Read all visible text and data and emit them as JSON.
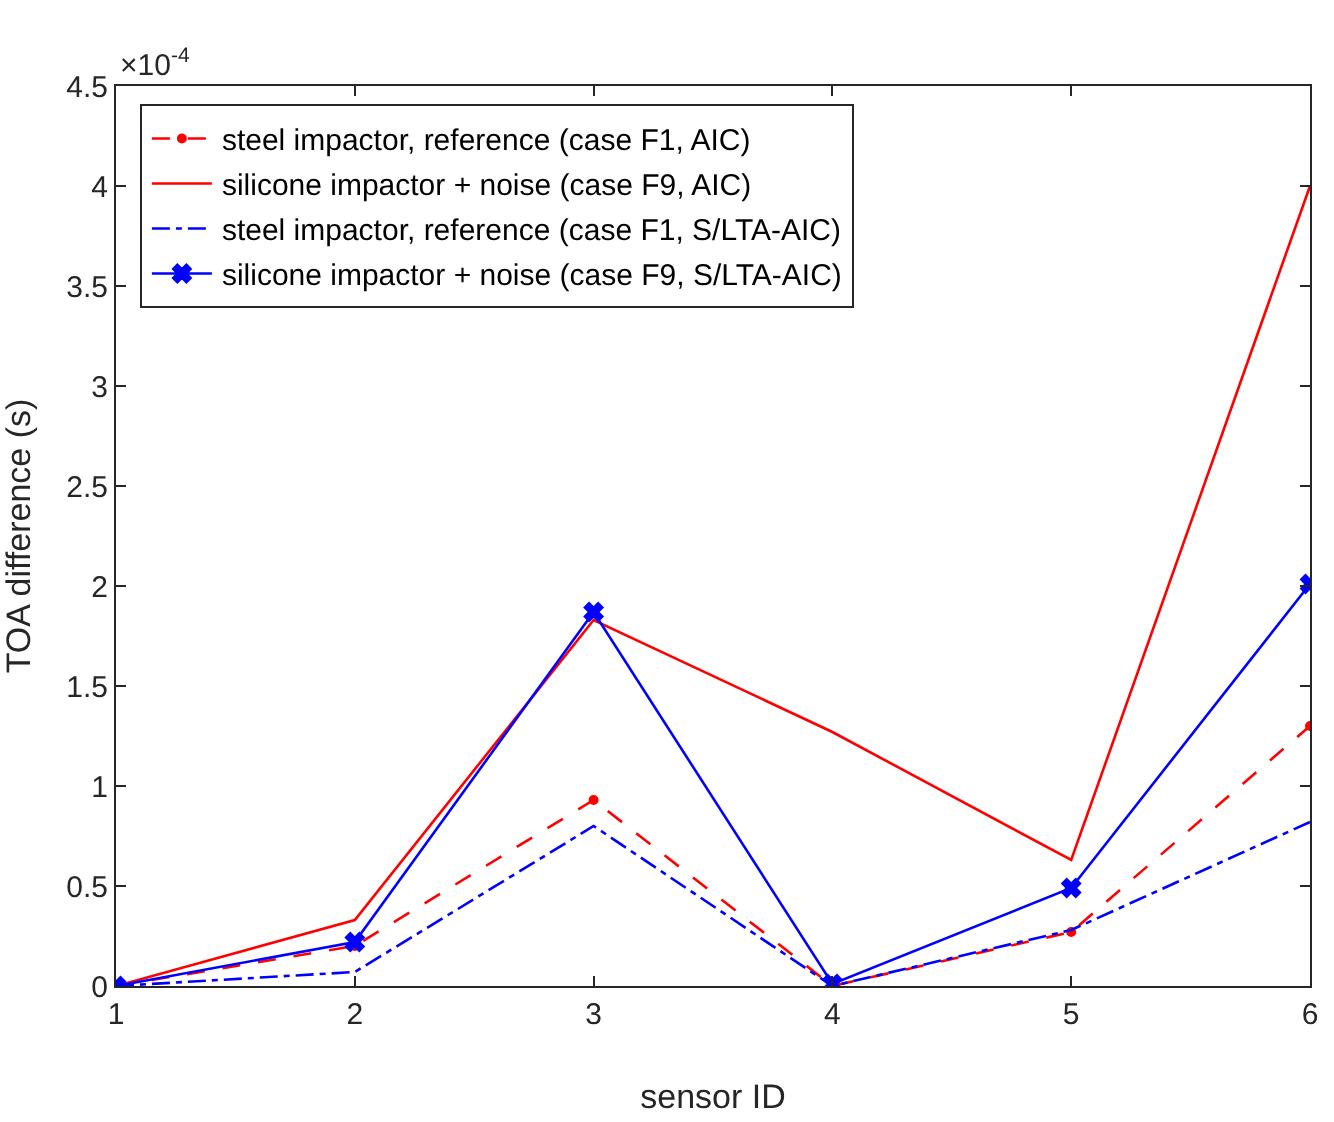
{
  "chart_data": {
    "type": "line",
    "xlabel": "sensor ID",
    "ylabel": "TOA difference (s)",
    "annotations": [
      "×10$^{-4}$"
    ],
    "x": [
      1,
      2,
      3,
      4,
      5,
      6
    ],
    "xlim": [
      1,
      6
    ],
    "xticks": [
      1,
      2,
      3,
      4,
      5,
      6
    ],
    "ylim": [
      0,
      4.5
    ],
    "yticks": [
      0,
      0.5,
      1,
      1.5,
      2,
      2.5,
      3,
      3.5,
      4,
      4.5
    ],
    "grid": false,
    "legend": "top left",
    "series": [
      {
        "name": "steel impactor, reference (case F1, AIC)",
        "color": "#ff0000",
        "line_style": "dashed",
        "marker": "circle",
        "values": [
          0,
          0.2,
          0.93,
          0,
          0.27,
          1.3
        ]
      },
      {
        "name": "silicone impactor + noise (case F9, AIC)",
        "color": "#ff0000",
        "line_style": "solid",
        "marker": "none",
        "values": [
          0,
          0.33,
          1.83,
          1.27,
          0.63,
          4.0
        ]
      },
      {
        "name": "steel impactor, reference (case F1, S/LTA-AIC)",
        "color": "#0000ff",
        "line_style": "dashdot",
        "marker": "none",
        "values": [
          0,
          0.07,
          0.8,
          0,
          0.28,
          0.82
        ]
      },
      {
        "name": "silicone impactor + noise (case F9, S/LTA-AIC)",
        "color": "#0000ff",
        "line_style": "solid",
        "marker": "cross",
        "values": [
          0,
          0.22,
          1.87,
          0.01,
          0.49,
          2.01
        ]
      }
    ]
  }
}
